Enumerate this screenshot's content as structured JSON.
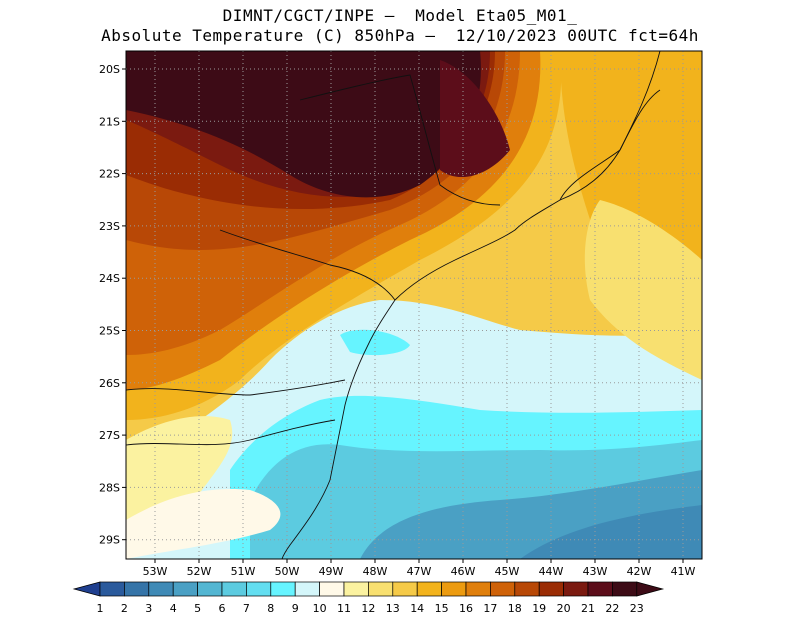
{
  "header": {
    "title_line1": "DIMNT/CGCT/INPE –  Model Eta05_M01_",
    "title_line2": "Absolute Temperature (C) 850hPa –  12/10/2023 00UTC fct=64h"
  },
  "map": {
    "lat_labels": [
      "20S",
      "21S",
      "22S",
      "23S",
      "24S",
      "25S",
      "26S",
      "27S",
      "28S",
      "29S"
    ],
    "lon_labels": [
      "53W",
      "52W",
      "51W",
      "50W",
      "49W",
      "48W",
      "47W",
      "46W",
      "45W",
      "44W",
      "43W",
      "42W",
      "41W"
    ],
    "grid": "dotted"
  },
  "colorbar": {
    "labels": [
      "1",
      "2",
      "3",
      "4",
      "5",
      "6",
      "7",
      "8",
      "9",
      "10",
      "11",
      "12",
      "13",
      "14",
      "15",
      "16",
      "17",
      "18",
      "19",
      "20",
      "21",
      "22",
      "23"
    ],
    "colors": [
      "#1f3f8f",
      "#2a5a9c",
      "#3574a8",
      "#3f8ab6",
      "#4aa0c4",
      "#53b6d2",
      "#5ccbe0",
      "#63def0",
      "#66f4ff",
      "#d4f6fa",
      "#fff9e8",
      "#fbf2a0",
      "#f8e070",
      "#f5ca48",
      "#f2b31c",
      "#ec9b10",
      "#e07f0c",
      "#cf6208",
      "#b84806",
      "#9a2c04",
      "#7b1a10",
      "#5c0d1a",
      "#3d0b16"
    ]
  }
}
